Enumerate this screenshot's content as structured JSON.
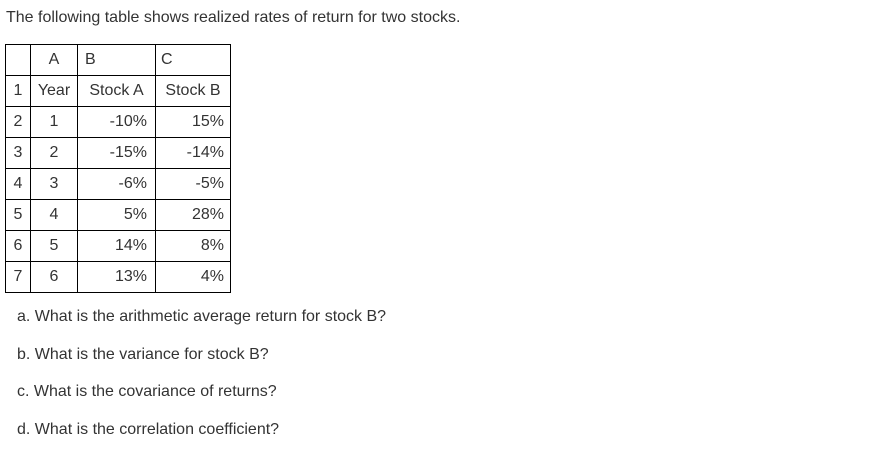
{
  "intro": "The following table shows realized rates of return for two stocks.",
  "sheet": {
    "col_headers": [
      "A",
      "B",
      "C"
    ],
    "rows": [
      {
        "num": "1",
        "a": "Year",
        "b": "Stock A",
        "c": "Stock B"
      },
      {
        "num": "2",
        "a": "1",
        "b": "-10%",
        "c": "15%"
      },
      {
        "num": "3",
        "a": "2",
        "b": "-15%",
        "c": "-14%"
      },
      {
        "num": "4",
        "a": "3",
        "b": "-6%",
        "c": "-5%"
      },
      {
        "num": "5",
        "a": "4",
        "b": "5%",
        "c": "28%"
      },
      {
        "num": "6",
        "a": "5",
        "b": "14%",
        "c": "8%"
      },
      {
        "num": "7",
        "a": "6",
        "b": "13%",
        "c": "4%"
      }
    ]
  },
  "questions": [
    "a. What is the arithmetic average return for stock B?",
    "b. What is the variance for stock B?",
    "c. What is the covariance of returns?",
    "d. What is the correlation coefficient?"
  ]
}
